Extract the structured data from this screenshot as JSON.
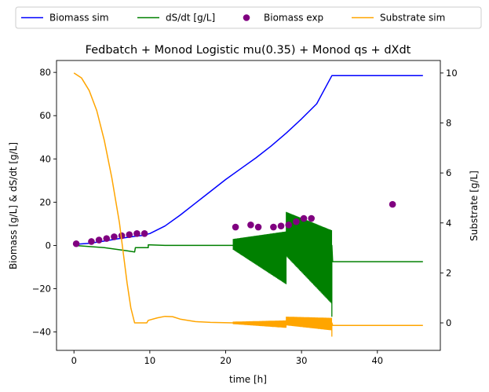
{
  "chart_data": {
    "type": "line",
    "title": "Fedbatch + Monod Logistic mu(0.35) + Monod qs + dXdt",
    "xlabel": "time [h]",
    "ylabel_left": "Biomass [g/L] & dS/dt [g/L]",
    "ylabel_right": "Substrate [g/L]",
    "xlim": [
      -2.3,
      48.3
    ],
    "ylim_left": [
      -48.5,
      85.5
    ],
    "ylim_right": [
      -1.1,
      10.5
    ],
    "x_ticks": [
      0,
      10,
      20,
      30,
      40
    ],
    "y_ticks_left": [
      -40,
      -20,
      0,
      20,
      40,
      60,
      80
    ],
    "y_ticks_right": [
      0,
      2,
      4,
      6,
      8,
      10
    ],
    "grid": false,
    "legend_position": "top-outside",
    "legend": [
      {
        "label": "Biomass sim",
        "color": "#0000ff",
        "marker": "line"
      },
      {
        "label": "dS/dt [g/L]",
        "color": "#008000",
        "marker": "line"
      },
      {
        "label": "Biomass exp",
        "color": "#800080",
        "marker": "dot"
      },
      {
        "label": "Substrate sim",
        "color": "#ffa500",
        "marker": "line"
      }
    ],
    "series": [
      {
        "name": "Biomass sim",
        "axis": "left",
        "style": "line",
        "color": "#0000ff",
        "x": [
          0,
          2,
          4,
          6,
          8,
          9,
          10,
          12,
          14,
          16,
          18,
          20,
          22,
          24,
          26,
          28,
          30,
          32,
          34,
          46
        ],
        "y": [
          0.5,
          1.0,
          2.0,
          3.2,
          4.2,
          4.6,
          5.5,
          9,
          14,
          19.5,
          25,
          30.5,
          35.5,
          40.5,
          46,
          52,
          58.5,
          65.5,
          78.5,
          78.5
        ]
      },
      {
        "name": "dS/dt [g/L]",
        "axis": "left",
        "style": "line",
        "color": "#008000",
        "x": [
          0,
          4,
          7,
          8,
          8.1,
          9.8,
          9.8,
          12,
          21,
          34,
          34.1,
          46
        ],
        "y": [
          0,
          -1,
          -2.5,
          -3,
          -1,
          -1,
          0.3,
          0,
          0,
          0,
          -7.5,
          -7.5
        ]
      },
      {
        "name": "Biomass exp",
        "axis": "left",
        "style": "scatter",
        "color": "#800080",
        "x": [
          0.3,
          2.3,
          3.3,
          4.3,
          5.3,
          6.3,
          7.3,
          8.3,
          9.3,
          21.3,
          23.3,
          24.3,
          26.3,
          27.3,
          28.3,
          29.3,
          30.3,
          31.3,
          42.0
        ],
        "y": [
          0.8,
          1.8,
          2.5,
          3.2,
          4.0,
          4.5,
          5.0,
          5.5,
          5.5,
          8.5,
          9.5,
          8.5,
          8.5,
          9.0,
          9.5,
          11.0,
          12.5,
          12.5,
          19.0
        ]
      },
      {
        "name": "Substrate sim",
        "axis": "right",
        "style": "line",
        "color": "#ffa500",
        "x": [
          0,
          1,
          2,
          3,
          4,
          5,
          6,
          7,
          7.5,
          8,
          9.6,
          9.8,
          11,
          12,
          13,
          14,
          16,
          18,
          21,
          34,
          34.1,
          46
        ],
        "y": [
          10,
          9.8,
          9.3,
          8.5,
          7.3,
          5.8,
          4.0,
          1.6,
          0.6,
          0,
          0,
          0.1,
          0.2,
          0.26,
          0.25,
          0.15,
          0.05,
          0.02,
          0.0,
          0.0,
          -0.1,
          -0.1
        ]
      }
    ],
    "oscillation_bands": [
      {
        "series": "dS/dt [g/L]",
        "axis": "left",
        "segments": [
          {
            "x0": 21.0,
            "x1": 28.0,
            "upper0": 3.0,
            "upper1": 6.5,
            "lower0": -2.0,
            "lower1": -18.0
          },
          {
            "x0": 28.0,
            "x1": 34.0,
            "upper0": 15.5,
            "upper1": 7.0,
            "lower0": -5.0,
            "lower1": -27.0
          }
        ],
        "spikes": [
          {
            "x": 34.0,
            "y": -33.0
          }
        ]
      },
      {
        "series": "Substrate sim",
        "axis": "right",
        "segments": [
          {
            "x0": 21.0,
            "x1": 28.0,
            "upper0": 0.05,
            "upper1": 0.1,
            "lower0": -0.05,
            "lower1": -0.2
          },
          {
            "x0": 28.0,
            "x1": 34.0,
            "upper0": 0.25,
            "upper1": 0.2,
            "lower0": -0.1,
            "lower1": -0.3
          }
        ],
        "spikes": [
          {
            "x": 34.0,
            "y": -0.55
          }
        ]
      }
    ]
  }
}
